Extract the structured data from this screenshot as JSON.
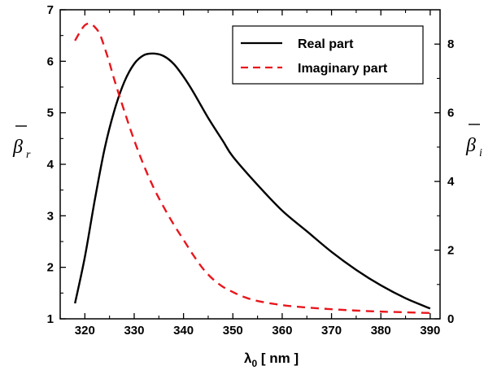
{
  "chart_data": {
    "type": "line",
    "title": "",
    "xlabel": {
      "symbol": "λ",
      "subscript": "0",
      "unit": " [ nm ]"
    },
    "ylabel_left": {
      "symbol": "β",
      "subscript": "r"
    },
    "ylabel_right": {
      "symbol": "β",
      "subscript": "i"
    },
    "xlim": [
      315,
      392
    ],
    "ylim_left": [
      1,
      7
    ],
    "ylim_right": [
      0,
      9
    ],
    "xticks": [
      320,
      330,
      340,
      350,
      360,
      370,
      380,
      390
    ],
    "yticks_left": [
      1,
      2,
      3,
      4,
      5,
      6,
      7
    ],
    "yticks_right": [
      0,
      2,
      4,
      6,
      8
    ],
    "grid": false,
    "legend_position": "top-right",
    "series": [
      {
        "name": "Real part",
        "axis": "left",
        "color": "#000000",
        "style": "solid",
        "x": [
          318,
          320,
          322,
          324,
          326,
          328,
          330,
          332,
          334,
          336,
          338,
          340,
          342,
          345,
          348,
          350,
          355,
          360,
          365,
          370,
          375,
          380,
          385,
          390
        ],
        "y": [
          1.3,
          2.2,
          3.3,
          4.3,
          5.05,
          5.6,
          5.95,
          6.12,
          6.15,
          6.1,
          5.95,
          5.7,
          5.4,
          4.9,
          4.45,
          4.15,
          3.6,
          3.1,
          2.7,
          2.3,
          1.95,
          1.65,
          1.4,
          1.2
        ]
      },
      {
        "name": "Imaginary part",
        "axis": "right",
        "color": "#e8171d",
        "style": "dashed",
        "x": [
          318,
          319,
          320,
          321,
          322,
          323,
          324,
          325,
          326,
          328,
          330,
          332,
          334,
          336,
          338,
          340,
          342,
          344,
          346,
          348,
          350,
          352,
          355,
          360,
          365,
          370,
          375,
          380,
          385,
          390
        ],
        "y": [
          8.1,
          8.35,
          8.55,
          8.6,
          8.5,
          8.3,
          7.9,
          7.45,
          6.95,
          6.05,
          5.2,
          4.45,
          3.8,
          3.25,
          2.75,
          2.3,
          1.85,
          1.45,
          1.15,
          0.93,
          0.78,
          0.65,
          0.52,
          0.4,
          0.33,
          0.28,
          0.24,
          0.21,
          0.19,
          0.17
        ]
      }
    ]
  }
}
